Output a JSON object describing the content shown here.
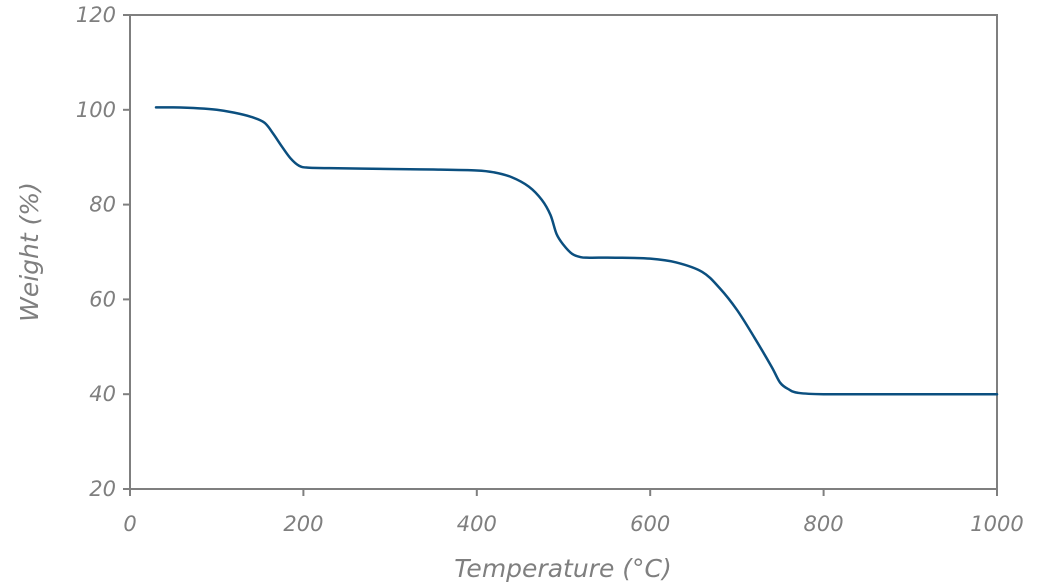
{
  "chart_data": {
    "type": "line",
    "title": "",
    "xlabel": "Temperature (°C)",
    "ylabel": "Weight (%)",
    "xlim": [
      0,
      1000
    ],
    "ylim": [
      20,
      120
    ],
    "xticks": [
      0,
      200,
      400,
      600,
      800,
      1000
    ],
    "xtick_labels": [
      "0",
      "200",
      "400",
      "600",
      "800",
      "1000"
    ],
    "yticks": [
      20,
      40,
      60,
      80,
      100,
      120
    ],
    "ytick_labels": [
      "20",
      "40",
      "60",
      "80",
      "100",
      "120"
    ],
    "grid": false,
    "legend": "none",
    "line_color": "#0b4f7f",
    "series": [
      {
        "x": [
          30,
          50,
          80,
          100,
          120,
          140,
          155,
          165,
          175,
          185,
          195,
          205,
          230,
          300,
          350,
          400,
          420,
          440,
          460,
          475,
          485,
          492,
          500,
          510,
          520,
          530,
          560,
          600,
          630,
          660,
          680,
          700,
          720,
          740,
          750,
          760,
          770,
          800,
          900,
          1000
        ],
        "y": [
          100.5,
          100.5,
          100.3,
          100.0,
          99.4,
          98.5,
          97.3,
          95.0,
          92.3,
          89.8,
          88.2,
          87.8,
          87.7,
          87.5,
          87.4,
          87.2,
          86.8,
          85.8,
          83.8,
          81.0,
          77.8,
          73.8,
          71.5,
          69.6,
          68.9,
          68.8,
          68.8,
          68.6,
          67.8,
          65.8,
          62.4,
          57.8,
          52.0,
          45.8,
          42.4,
          41.0,
          40.3,
          40.0,
          40.0,
          40.0
        ]
      }
    ]
  }
}
